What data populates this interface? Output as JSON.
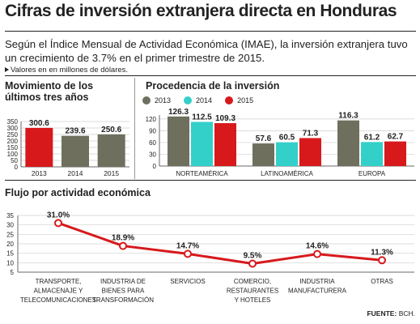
{
  "header": {
    "title": "Cifras de inversión extranjera directa en Honduras",
    "intro": "Según el Índice Mensual de Actividad Económica (IMAE), la inversión extranjera tuvo un crecimiento de 3.7% en el primer trimestre de 2015.",
    "note": "Valores en en millones de dólares."
  },
  "source": {
    "label": "FUENTE:",
    "value": "BCH."
  },
  "chart_data": [
    {
      "type": "bar",
      "title": "Movimiento de los últimos tres años",
      "categories": [
        "2013",
        "2014",
        "2015"
      ],
      "values": [
        300.6,
        239.6,
        250.6
      ],
      "value_labels": [
        "300.6",
        "239.6",
        "250.6"
      ],
      "colors": [
        "#d7191c",
        "#6f6f5e",
        "#6f6f5e"
      ],
      "yticks": [
        0,
        50,
        100,
        150,
        200,
        250,
        300,
        350
      ],
      "ylim": [
        0,
        350
      ],
      "grid": true
    },
    {
      "type": "bar",
      "title": "Procedencia de la inversión",
      "categories": [
        "NORTEAMÉRICA",
        "LATINOAMÉRICA",
        "EUROPA"
      ],
      "series": [
        {
          "name": "2013",
          "color": "#6f6f5e",
          "values": [
            126.3,
            57.6,
            116.3
          ],
          "labels": [
            "126.3",
            "57.6",
            "116.3"
          ]
        },
        {
          "name": "2014",
          "color": "#33d0c9",
          "values": [
            112.5,
            60.5,
            61.2
          ],
          "labels": [
            "112.5",
            "60.5",
            "61.2"
          ]
        },
        {
          "name": "2015",
          "color": "#d7191c",
          "values": [
            109.3,
            71.3,
            62.7
          ],
          "labels": [
            "109.3",
            "71.3",
            "62.7"
          ]
        }
      ],
      "yticks": [
        0,
        30,
        60,
        90,
        120
      ],
      "ylim": [
        0,
        130
      ],
      "grid": true,
      "legend": "top-left"
    },
    {
      "type": "line",
      "title": "Flujo por actividad económica",
      "categories": [
        "TRANSPORTE, ALMACENAJE Y TELECOMUNICACIONES",
        "INDUSTRIA DE BIENES PARA TRANSFORMACIÓN",
        "SERVICIOS",
        "COMERCIO, RESTAURANTES Y HOTELES",
        "INDUSTRIA MANUFACTURERA",
        "OTRAS"
      ],
      "category_lines": [
        [
          "TRANSPORTE,",
          "ALMACENAJE Y",
          "TELECOMUNICACIONES"
        ],
        [
          "INDUSTRIA DE",
          "BIENES PARA",
          "TRANSFORMACIÓN"
        ],
        [
          "SERVICIOS"
        ],
        [
          "COMERCIO,",
          "RESTAURANTES",
          "Y HOTELES"
        ],
        [
          "INDUSTRIA",
          "MANUFACTURERA"
        ],
        [
          "OTRAS"
        ]
      ],
      "values": [
        31.0,
        18.9,
        14.7,
        9.5,
        14.6,
        11.3
      ],
      "value_labels": [
        "31.0%",
        "18.9%",
        "14.7%",
        "9.5%",
        "14.6%",
        "11.3%"
      ],
      "yticks": [
        5,
        10,
        15,
        20,
        25,
        30,
        35
      ],
      "ylim": [
        5,
        35
      ],
      "color": "#d7191c",
      "grid": true
    }
  ]
}
